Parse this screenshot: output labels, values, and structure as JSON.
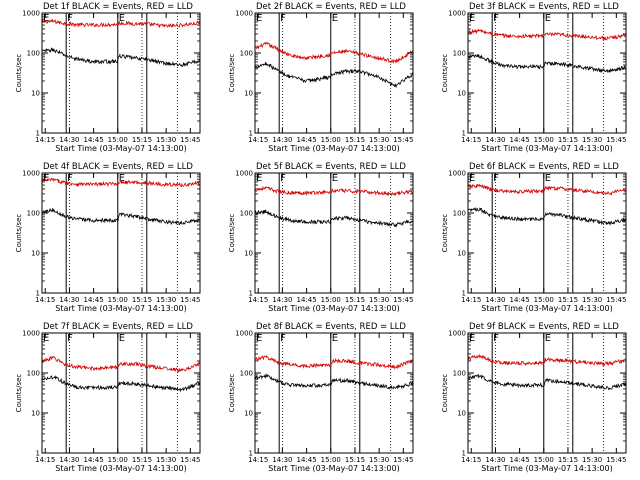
{
  "figure": {
    "x_tick_labels": [
      "14:15",
      "14:30",
      "14:45",
      "15:00",
      "15:15",
      "15:30",
      "15:45"
    ],
    "y_tick_labels": [
      "1",
      "10",
      "100",
      "1000"
    ],
    "segment_labels": [
      "E",
      "F",
      "E"
    ]
  },
  "chart_data": [
    {
      "type": "line",
      "title": "Det 1f BLACK = Events, RED = LLD",
      "xlabel": "Start Time (03-May-07 14:13:00)",
      "ylabel": "Counts/sec",
      "xlim": [
        "14:13",
        "15:51"
      ],
      "ylim": [
        1,
        1000
      ],
      "yscale": "log",
      "segment_boundaries": [
        "14:28",
        "15:00",
        "15:18"
      ],
      "dotted_time_markers": [
        "14:30",
        "15:15",
        "15:37"
      ],
      "x": [
        "14:13",
        "14:20",
        "14:28",
        "14:35",
        "14:45",
        "15:00",
        "15:01",
        "15:10",
        "15:18",
        "15:30",
        "15:40",
        "15:51"
      ],
      "series": [
        {
          "color": "#d40000",
          "values": [
            600,
            620,
            540,
            510,
            500,
            520,
            560,
            540,
            530,
            470,
            500,
            560
          ]
        },
        {
          "color": "#000000",
          "values": [
            110,
            120,
            85,
            70,
            60,
            62,
            85,
            75,
            70,
            55,
            50,
            65
          ]
        }
      ]
    },
    {
      "type": "line",
      "title": "Det 2f BLACK = Events, RED = LLD",
      "xlabel": "Start Time (03-May-07 14:13:00)",
      "ylabel": "Counts/sec",
      "xlim": [
        "14:13",
        "15:51"
      ],
      "ylim": [
        1,
        1000
      ],
      "yscale": "log",
      "segment_boundaries": [
        "14:28",
        "15:00",
        "15:18"
      ],
      "dotted_time_markers": [
        "14:30",
        "15:15",
        "15:37"
      ],
      "x": [
        "14:13",
        "14:20",
        "14:28",
        "14:35",
        "14:45",
        "15:00",
        "15:01",
        "15:10",
        "15:18",
        "15:30",
        "15:40",
        "15:51"
      ],
      "series": [
        {
          "color": "#d40000",
          "values": [
            130,
            170,
            120,
            85,
            75,
            90,
            100,
            110,
            95,
            75,
            60,
            110
          ]
        },
        {
          "color": "#000000",
          "values": [
            45,
            55,
            35,
            25,
            20,
            25,
            30,
            35,
            35,
            25,
            15,
            30
          ]
        }
      ]
    },
    {
      "type": "line",
      "title": "Det 3f BLACK = Events, RED = LLD",
      "xlabel": "Start Time (03-May-07 14:13:00)",
      "ylabel": "Counts/sec",
      "xlim": [
        "14:13",
        "15:51"
      ],
      "ylim": [
        1,
        1000
      ],
      "yscale": "log",
      "segment_boundaries": [
        "14:28",
        "15:00",
        "15:18"
      ],
      "dotted_time_markers": [
        "14:30",
        "15:15",
        "15:37"
      ],
      "x": [
        "14:13",
        "14:20",
        "14:28",
        "14:35",
        "14:45",
        "15:00",
        "15:01",
        "15:10",
        "15:18",
        "15:30",
        "15:40",
        "15:51"
      ],
      "series": [
        {
          "color": "#d40000",
          "values": [
            330,
            360,
            300,
            270,
            260,
            270,
            290,
            290,
            270,
            250,
            230,
            280
          ]
        },
        {
          "color": "#000000",
          "values": [
            80,
            85,
            60,
            48,
            45,
            45,
            55,
            55,
            48,
            40,
            35,
            45
          ]
        }
      ]
    },
    {
      "type": "line",
      "title": "Det 4f BLACK = Events, RED = LLD",
      "xlabel": "Start Time (03-May-07 14:13:00)",
      "ylabel": "Counts/sec",
      "xlim": [
        "14:13",
        "15:51"
      ],
      "ylim": [
        1,
        1000
      ],
      "yscale": "log",
      "segment_boundaries": [
        "14:28",
        "15:00",
        "15:18"
      ],
      "dotted_time_markers": [
        "14:30",
        "15:15",
        "15:37"
      ],
      "x": [
        "14:13",
        "14:20",
        "14:28",
        "14:35",
        "14:45",
        "15:00",
        "15:01",
        "15:10",
        "15:18",
        "15:30",
        "15:40",
        "15:51"
      ],
      "series": [
        {
          "color": "#d40000",
          "values": [
            650,
            680,
            560,
            530,
            520,
            540,
            600,
            580,
            560,
            520,
            500,
            560
          ]
        },
        {
          "color": "#000000",
          "values": [
            110,
            120,
            80,
            70,
            65,
            65,
            90,
            85,
            70,
            60,
            55,
            70
          ]
        }
      ]
    },
    {
      "type": "line",
      "title": "Det 5f BLACK = Events, RED = LLD",
      "xlabel": "Start Time (03-May-07 14:13:00)",
      "ylabel": "Counts/sec",
      "xlim": [
        "14:13",
        "15:51"
      ],
      "ylim": [
        1,
        1000
      ],
      "yscale": "log",
      "segment_boundaries": [
        "14:28",
        "15:00",
        "15:18"
      ],
      "dotted_time_markers": [
        "14:30",
        "15:15",
        "15:37"
      ],
      "x": [
        "14:13",
        "14:20",
        "14:28",
        "14:35",
        "14:45",
        "15:00",
        "15:01",
        "15:10",
        "15:18",
        "15:30",
        "15:40",
        "15:51"
      ],
      "series": [
        {
          "color": "#d40000",
          "values": [
            380,
            420,
            340,
            320,
            320,
            330,
            360,
            360,
            340,
            320,
            300,
            350
          ]
        },
        {
          "color": "#000000",
          "values": [
            100,
            110,
            75,
            65,
            60,
            60,
            75,
            75,
            65,
            55,
            50,
            65
          ]
        }
      ]
    },
    {
      "type": "line",
      "title": "Det 6f BLACK = Events, RED = LLD",
      "xlabel": "Start Time (03-May-07 14:13:00)",
      "ylabel": "Counts/sec",
      "xlim": [
        "14:13",
        "15:51"
      ],
      "ylim": [
        1,
        1000
      ],
      "yscale": "log",
      "segment_boundaries": [
        "14:28",
        "15:00",
        "15:18"
      ],
      "dotted_time_markers": [
        "14:30",
        "15:15",
        "15:37"
      ],
      "x": [
        "14:13",
        "14:20",
        "14:28",
        "14:35",
        "14:45",
        "15:00",
        "15:01",
        "15:10",
        "15:18",
        "15:30",
        "15:40",
        "15:51"
      ],
      "series": [
        {
          "color": "#d40000",
          "values": [
            450,
            480,
            380,
            350,
            340,
            360,
            420,
            410,
            380,
            340,
            310,
            380
          ]
        },
        {
          "color": "#000000",
          "values": [
            115,
            125,
            85,
            75,
            70,
            70,
            95,
            90,
            75,
            65,
            55,
            70
          ]
        }
      ]
    },
    {
      "type": "line",
      "title": "Det 7f BLACK = Events, RED = LLD",
      "xlabel": "Start Time (03-May-07 14:13:00)",
      "ylabel": "Counts/sec",
      "xlim": [
        "14:13",
        "15:51"
      ],
      "ylim": [
        1,
        1000
      ],
      "yscale": "log",
      "segment_boundaries": [
        "14:28",
        "15:00",
        "15:18"
      ],
      "dotted_time_markers": [
        "14:30",
        "15:15",
        "15:37"
      ],
      "x": [
        "14:13",
        "14:20",
        "14:28",
        "14:35",
        "14:45",
        "15:00",
        "15:01",
        "15:10",
        "15:18",
        "15:30",
        "15:40",
        "15:51"
      ],
      "series": [
        {
          "color": "#d40000",
          "values": [
            200,
            240,
            160,
            140,
            130,
            140,
            170,
            170,
            150,
            130,
            115,
            170
          ]
        },
        {
          "color": "#000000",
          "values": [
            70,
            80,
            55,
            45,
            42,
            45,
            55,
            55,
            48,
            42,
            38,
            55
          ]
        }
      ]
    },
    {
      "type": "line",
      "title": "Det 8f BLACK = Events, RED = LLD",
      "xlabel": "Start Time (03-May-07 14:13:00)",
      "ylabel": "Counts/sec",
      "xlim": [
        "14:13",
        "15:51"
      ],
      "ylim": [
        1,
        1000
      ],
      "yscale": "log",
      "segment_boundaries": [
        "14:28",
        "15:00",
        "15:18"
      ],
      "dotted_time_markers": [
        "14:30",
        "15:15",
        "15:37"
      ],
      "x": [
        "14:13",
        "14:20",
        "14:28",
        "14:35",
        "14:45",
        "15:00",
        "15:01",
        "15:10",
        "15:18",
        "15:30",
        "15:40",
        "15:51"
      ],
      "series": [
        {
          "color": "#d40000",
          "values": [
            220,
            250,
            180,
            160,
            150,
            160,
            200,
            200,
            175,
            160,
            140,
            200
          ]
        },
        {
          "color": "#000000",
          "values": [
            75,
            85,
            60,
            50,
            48,
            50,
            65,
            65,
            55,
            48,
            42,
            55
          ]
        }
      ]
    },
    {
      "type": "line",
      "title": "Det 9f BLACK = Events, RED = LLD",
      "xlabel": "Start Time (03-May-07 14:13:00)",
      "ylabel": "Counts/sec",
      "xlim": [
        "14:13",
        "15:51"
      ],
      "ylim": [
        1,
        1000
      ],
      "yscale": "log",
      "segment_boundaries": [
        "14:28",
        "15:00",
        "15:18"
      ],
      "dotted_time_markers": [
        "14:30",
        "15:15",
        "15:37"
      ],
      "x": [
        "14:13",
        "14:20",
        "14:28",
        "14:35",
        "14:45",
        "15:00",
        "15:01",
        "15:10",
        "15:18",
        "15:30",
        "15:40",
        "15:51"
      ],
      "series": [
        {
          "color": "#d40000",
          "values": [
            230,
            260,
            200,
            180,
            175,
            180,
            220,
            210,
            195,
            180,
            170,
            210
          ]
        },
        {
          "color": "#000000",
          "values": [
            75,
            85,
            60,
            52,
            50,
            50,
            65,
            62,
            55,
            48,
            42,
            52
          ]
        }
      ]
    }
  ]
}
